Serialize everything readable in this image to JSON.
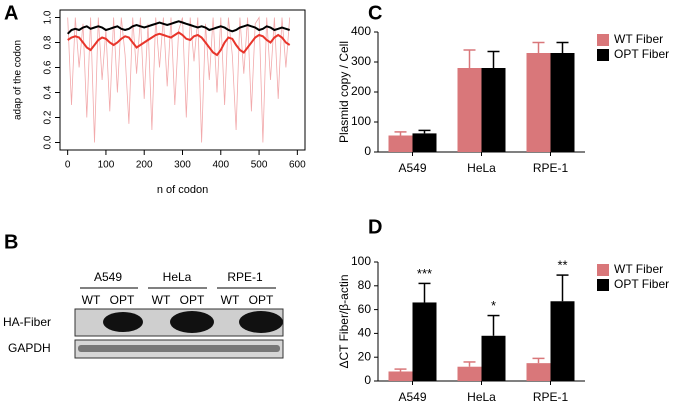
{
  "chart_data": [
    {
      "type": "line",
      "panel_label": "A",
      "xlabel": "n of codon",
      "ylabel": "adap of the codon",
      "x": [
        0,
        10,
        20,
        30,
        40,
        50,
        60,
        70,
        80,
        90,
        100,
        110,
        120,
        130,
        140,
        150,
        160,
        170,
        180,
        190,
        200,
        210,
        220,
        230,
        240,
        250,
        260,
        270,
        280,
        290,
        300,
        310,
        320,
        330,
        340,
        350,
        360,
        370,
        380,
        390,
        400,
        410,
        420,
        430,
        440,
        450,
        460,
        470,
        480,
        490,
        500,
        510,
        520,
        530,
        540,
        550,
        560,
        570,
        580
      ],
      "series": [
        {
          "color": "#f2a9ab",
          "values": [
            1.0,
            0.3,
            1.0,
            0.6,
            0.95,
            0.2,
            1.0,
            0.0,
            1.0,
            0.5,
            0.9,
            0.25,
            1.0,
            0.4,
            1.0,
            0.7,
            0.15,
            1.0,
            0.55,
            1.0,
            0.35,
            0.95,
            0.1,
            1.0,
            0.6,
            1.0,
            0.45,
            1.0,
            0.3,
            0.9,
            1.0,
            0.2,
            1.0,
            0.65,
            1.0,
            0.0,
            0.95,
            0.5,
            1.0,
            0.4,
            1.0,
            0.3,
            1.0,
            0.7,
            0.1,
            1.0,
            0.55,
            1.0,
            0.25,
            0.95,
            1.0,
            0.0,
            1.0,
            0.5,
            1.0,
            0.35,
            1.0,
            0.6,
            1.0
          ]
        },
        {
          "color": "#000000",
          "values": [
            0.87,
            0.9,
            0.91,
            0.9,
            0.92,
            0.93,
            0.91,
            0.92,
            0.93,
            0.92,
            0.9,
            0.91,
            0.92,
            0.93,
            0.91,
            0.9,
            0.91,
            0.93,
            0.94,
            0.93,
            0.92,
            0.93,
            0.94,
            0.95,
            0.96,
            0.95,
            0.94,
            0.95,
            0.96,
            0.97,
            0.96,
            0.95,
            0.94,
            0.93,
            0.92,
            0.93,
            0.92,
            0.9,
            0.91,
            0.92,
            0.93,
            0.92,
            0.9,
            0.89,
            0.9,
            0.92,
            0.93,
            0.94,
            0.93,
            0.92,
            0.9,
            0.91,
            0.93,
            0.92,
            0.9,
            0.91,
            0.92,
            0.91,
            0.9
          ]
        },
        {
          "color": "#e8352b",
          "values": [
            0.82,
            0.84,
            0.85,
            0.84,
            0.8,
            0.76,
            0.74,
            0.78,
            0.82,
            0.84,
            0.83,
            0.8,
            0.78,
            0.8,
            0.83,
            0.85,
            0.84,
            0.8,
            0.76,
            0.78,
            0.8,
            0.82,
            0.84,
            0.86,
            0.87,
            0.86,
            0.85,
            0.84,
            0.86,
            0.88,
            0.86,
            0.83,
            0.82,
            0.85,
            0.86,
            0.84,
            0.8,
            0.76,
            0.72,
            0.7,
            0.74,
            0.8,
            0.84,
            0.83,
            0.78,
            0.74,
            0.72,
            0.76,
            0.8,
            0.84,
            0.86,
            0.85,
            0.82,
            0.8,
            0.84,
            0.86,
            0.84,
            0.8,
            0.78
          ]
        }
      ],
      "xlim": [
        -20,
        620
      ],
      "xticks": [
        0,
        100,
        200,
        300,
        400,
        500,
        600
      ],
      "ylim": [
        -0.06,
        1.06
      ],
      "yticks": [
        {
          "value": 0,
          "label": "0.0"
        },
        0.2,
        0.4,
        0.6,
        0.8,
        {
          "value": 1,
          "label": "1.0"
        }
      ]
    },
    {
      "type": "bar",
      "panel_label": "C",
      "ylabel": "Plasmid copy / Cell",
      "categories": [
        "A549",
        "HeLa",
        "RPE-1"
      ],
      "series": [
        {
          "name": "WT Fiber",
          "color": "#d9777a",
          "values": [
            55,
            280,
            330
          ],
          "errors": [
            12,
            60,
            35
          ]
        },
        {
          "name": "OPT Fiber",
          "color": "#000000",
          "values": [
            62,
            280,
            330
          ],
          "errors": [
            10,
            55,
            35
          ]
        }
      ],
      "ylim": [
        0,
        400
      ],
      "yticks": [
        0,
        100,
        200,
        300,
        400
      ],
      "legend": "outside-right"
    },
    {
      "type": "bar",
      "panel_label": "D",
      "ylabel": "ΔCT Fiber/β-actin",
      "categories": [
        "A549",
        "HeLa",
        "RPE-1"
      ],
      "series": [
        {
          "name": "WT Fiber",
          "color": "#d9777a",
          "values": [
            8,
            12,
            15
          ],
          "errors": [
            2,
            4,
            4
          ]
        },
        {
          "name": "OPT Fiber",
          "color": "#000000",
          "values": [
            66,
            38,
            67
          ],
          "errors": [
            16,
            17,
            22
          ]
        }
      ],
      "annotations": [
        "***",
        "*",
        "**"
      ],
      "ylim": [
        0,
        100
      ],
      "yticks": [
        0,
        20,
        40,
        60,
        80,
        100
      ],
      "legend": "outside-right"
    }
  ],
  "blot": {
    "panel_label": "B",
    "groups": [
      "A549",
      "HeLa",
      "RPE-1"
    ],
    "lanes": [
      "WT",
      "OPT",
      "WT",
      "OPT",
      "WT",
      "OPT"
    ],
    "rows": [
      "HA-Fiber",
      "GAPDH"
    ]
  }
}
